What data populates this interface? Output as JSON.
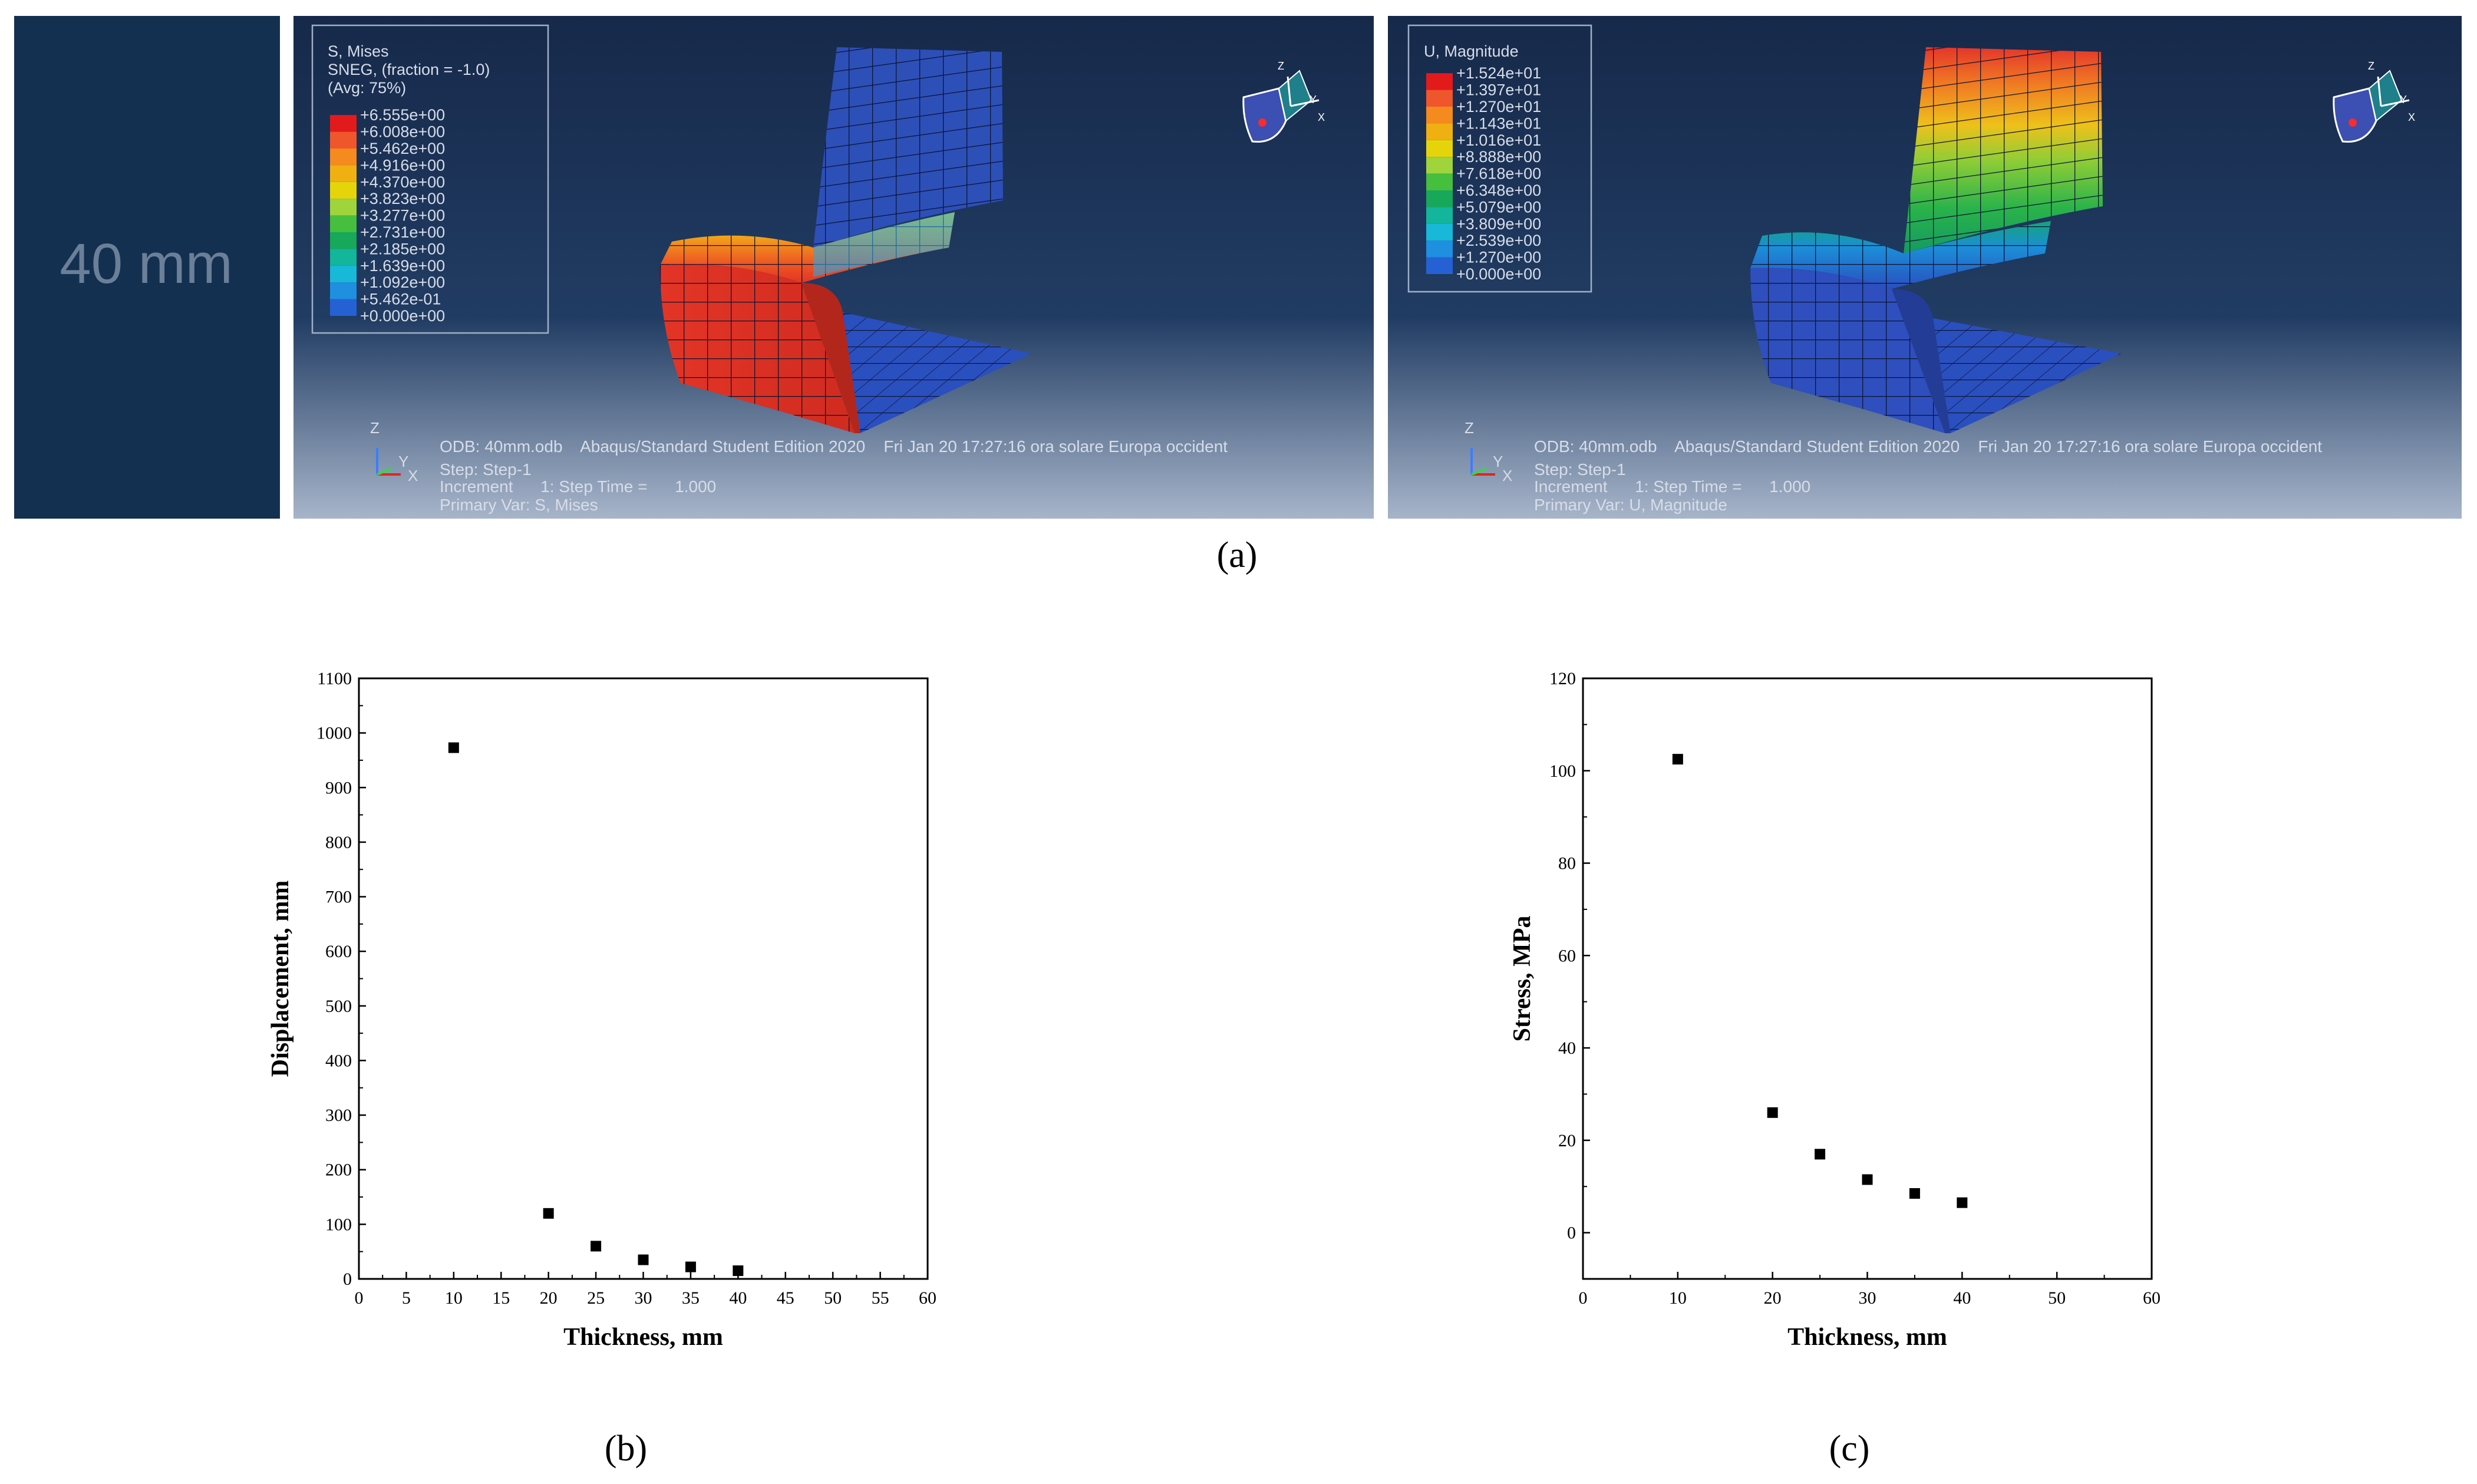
{
  "row_label": "40 mm",
  "subfigure_labels": {
    "a": "(a)",
    "b": "(b)",
    "c": "(c)"
  },
  "colors": {
    "navy": "#143050",
    "viewport_top": "#16294a",
    "viewport_mid": "#213c63",
    "viewport_bottom": "#a7b5ca",
    "mesh_blue": "#2d4fb8",
    "mesh_red": "#e33526"
  },
  "panel_left": {
    "legend_title": "S, Mises",
    "legend_subtitle": "SNEG, (fraction = -1.0)",
    "legend_avg": "(Avg: 75%)",
    "legend_values": [
      "+6.555e+00",
      "+6.008e+00",
      "+5.462e+00",
      "+4.916e+00",
      "+4.370e+00",
      "+3.823e+00",
      "+3.277e+00",
      "+2.731e+00",
      "+2.185e+00",
      "+1.639e+00",
      "+1.092e+00",
      "+5.462e-01",
      "+0.000e+00"
    ],
    "legend_colors": [
      "#e31a1c",
      "#f0562b",
      "#f58a1f",
      "#f0b012",
      "#e6d40a",
      "#9fd43c",
      "#46be3e",
      "#17a85a",
      "#13b59b",
      "#18b8d8",
      "#1f8fe0",
      "#2561d4",
      "#2a3fb4"
    ],
    "info_line1": "ODB: 40mm.odb    Abaqus/Standard Student Edition 2020    Fri Jan 20 17:27:16 ora solare Europa occident",
    "info_line2": "Step: Step-1",
    "info_line3": "Increment      1: Step Time =      1.000",
    "info_line4": "Primary Var: S, Mises"
  },
  "panel_right": {
    "legend_title": "U, Magnitude",
    "legend_values": [
      "+1.524e+01",
      "+1.397e+01",
      "+1.270e+01",
      "+1.143e+01",
      "+1.016e+01",
      "+8.888e+00",
      "+7.618e+00",
      "+6.348e+00",
      "+5.079e+00",
      "+3.809e+00",
      "+2.539e+00",
      "+1.270e+00",
      "+0.000e+00"
    ],
    "legend_colors": [
      "#e31a1c",
      "#f0562b",
      "#f58a1f",
      "#f0b012",
      "#e6d40a",
      "#9fd43c",
      "#46be3e",
      "#17a85a",
      "#13b59b",
      "#18b8d8",
      "#1f8fe0",
      "#2561d4",
      "#2a3fb4"
    ],
    "info_line1": "ODB: 40mm.odb    Abaqus/Standard Student Edition 2020    Fri Jan 20 17:27:16 ora solare Europa occident",
    "info_line2": "Step: Step-1",
    "info_line3": "Increment      1: Step Time =      1.000",
    "info_line4": "Primary Var: U, Magnitude"
  },
  "triad_labels": {
    "z": "Z",
    "y": "Y",
    "x": "X"
  },
  "chart_data": [
    {
      "id": "displacement",
      "type": "scatter",
      "title": "",
      "xlabel": "Thickness, mm",
      "ylabel": "Displacement, mm",
      "xlim": [
        0,
        60
      ],
      "ylim": [
        0,
        1100
      ],
      "xticks": [
        0,
        5,
        10,
        15,
        20,
        25,
        30,
        35,
        40,
        45,
        50,
        55,
        60
      ],
      "yticks": [
        0,
        100,
        200,
        300,
        400,
        500,
        600,
        700,
        800,
        900,
        1000,
        1100
      ],
      "x": [
        10,
        20,
        25,
        30,
        35,
        40
      ],
      "y": [
        973,
        120,
        60,
        35,
        22,
        15
      ]
    },
    {
      "id": "stress",
      "type": "scatter",
      "title": "",
      "xlabel": "Thickness, mm",
      "ylabel": "Stress, MPa",
      "xlim": [
        0,
        60
      ],
      "ylim": [
        -10,
        120
      ],
      "xticks": [
        0,
        10,
        20,
        30,
        40,
        50,
        60
      ],
      "yticks": [
        0,
        20,
        40,
        60,
        80,
        100,
        120
      ],
      "x": [
        10,
        20,
        25,
        30,
        35,
        40
      ],
      "y": [
        102.5,
        26,
        17,
        11.5,
        8.5,
        6.5
      ]
    }
  ]
}
